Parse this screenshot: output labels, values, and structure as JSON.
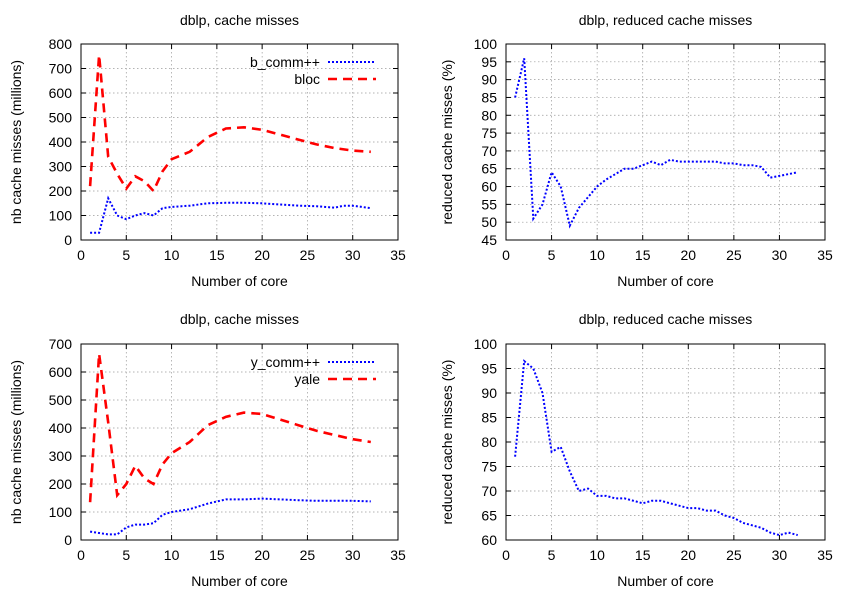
{
  "chart_data": [
    {
      "type": "line",
      "title": "dblp, cache misses",
      "xlabel": "Number of core",
      "ylabel": "nb cache misses (millions)",
      "xlim": [
        0,
        35
      ],
      "ylim": [
        0,
        800
      ],
      "xticks": [
        0,
        5,
        10,
        15,
        20,
        25,
        30,
        35
      ],
      "yticks": [
        0,
        100,
        200,
        300,
        400,
        500,
        600,
        700,
        800
      ],
      "grid": true,
      "legend": "top-right",
      "series": [
        {
          "name": "b_comm++",
          "color": "#0000ff",
          "style": "dotted",
          "x": [
            1,
            2,
            3,
            4,
            5,
            6,
            7,
            8,
            9,
            10,
            12,
            14,
            16,
            18,
            20,
            22,
            24,
            26,
            28,
            29,
            30,
            31,
            32
          ],
          "y": [
            30,
            30,
            170,
            100,
            85,
            100,
            110,
            100,
            130,
            135,
            140,
            150,
            152,
            152,
            150,
            145,
            140,
            138,
            132,
            140,
            140,
            135,
            130
          ]
        },
        {
          "name": "bloc",
          "color": "#ff0000",
          "style": "dashed",
          "x": [
            1,
            2,
            3,
            4,
            5,
            6,
            7,
            8,
            9,
            10,
            12,
            14,
            16,
            18,
            20,
            22,
            24,
            26,
            28,
            30,
            32
          ],
          "y": [
            220,
            755,
            340,
            270,
            210,
            260,
            240,
            200,
            280,
            330,
            360,
            420,
            455,
            460,
            450,
            430,
            410,
            390,
            375,
            365,
            360
          ]
        }
      ]
    },
    {
      "type": "line",
      "title": "dblp, reduced cache misses",
      "xlabel": "Number of core",
      "ylabel": "reduced cache misses (%)",
      "xlim": [
        0,
        35
      ],
      "ylim": [
        45,
        100
      ],
      "xticks": [
        0,
        5,
        10,
        15,
        20,
        25,
        30,
        35
      ],
      "yticks": [
        45,
        50,
        55,
        60,
        65,
        70,
        75,
        80,
        85,
        90,
        95,
        100
      ],
      "grid": true,
      "series": [
        {
          "color": "#0000ff",
          "style": "dotted",
          "x": [
            1,
            2,
            3,
            4,
            5,
            6,
            7,
            8,
            9,
            10,
            11,
            12,
            13,
            14,
            15,
            16,
            17,
            18,
            19,
            20,
            21,
            22,
            23,
            24,
            25,
            26,
            27,
            28,
            29,
            30,
            31,
            32
          ],
          "y": [
            85,
            96,
            51,
            55,
            64,
            60,
            49,
            54,
            57,
            60,
            62,
            63.5,
            65,
            65,
            66,
            67,
            66,
            67.5,
            67,
            67,
            67,
            67,
            67,
            66.5,
            66.5,
            66,
            66,
            65.5,
            62.5,
            63,
            63.5,
            64
          ]
        }
      ]
    },
    {
      "type": "line",
      "title": "dblp, cache misses",
      "xlabel": "Number of core",
      "ylabel": "nb cache misses (millions)",
      "xlim": [
        0,
        35
      ],
      "ylim": [
        0,
        700
      ],
      "xticks": [
        0,
        5,
        10,
        15,
        20,
        25,
        30,
        35
      ],
      "yticks": [
        0,
        100,
        200,
        300,
        400,
        500,
        600,
        700
      ],
      "grid": true,
      "legend": "top-right",
      "series": [
        {
          "name": "y_comm++",
          "color": "#0000ff",
          "style": "dotted",
          "x": [
            1,
            2,
            3,
            4,
            5,
            6,
            7,
            8,
            9,
            10,
            12,
            14,
            16,
            18,
            20,
            22,
            24,
            26,
            28,
            30,
            32
          ],
          "y": [
            30,
            25,
            20,
            20,
            45,
            55,
            55,
            60,
            90,
            100,
            110,
            130,
            145,
            145,
            148,
            145,
            142,
            140,
            140,
            140,
            138
          ]
        },
        {
          "name": "yale",
          "color": "#ff0000",
          "style": "dashed",
          "x": [
            1,
            2,
            3,
            4,
            5,
            6,
            7,
            8,
            9,
            10,
            12,
            14,
            16,
            18,
            20,
            22,
            24,
            26,
            28,
            30,
            32
          ],
          "y": [
            135,
            665,
            420,
            160,
            200,
            265,
            220,
            200,
            270,
            310,
            350,
            410,
            440,
            455,
            450,
            430,
            410,
            390,
            375,
            360,
            350
          ]
        }
      ]
    },
    {
      "type": "line",
      "title": "dblp, reduced cache misses",
      "xlabel": "Number of core",
      "ylabel": "reduced cache misses (%)",
      "xlim": [
        0,
        35
      ],
      "ylim": [
        60,
        100
      ],
      "xticks": [
        0,
        5,
        10,
        15,
        20,
        25,
        30,
        35
      ],
      "yticks": [
        60,
        65,
        70,
        75,
        80,
        85,
        90,
        95,
        100
      ],
      "grid": true,
      "series": [
        {
          "color": "#0000ff",
          "style": "dotted",
          "x": [
            1,
            2,
            3,
            4,
            5,
            6,
            7,
            8,
            9,
            10,
            11,
            12,
            13,
            14,
            15,
            16,
            17,
            18,
            19,
            20,
            21,
            22,
            23,
            24,
            25,
            26,
            27,
            28,
            29,
            30,
            31,
            32
          ],
          "y": [
            77,
            96.5,
            95,
            90,
            78,
            79,
            74,
            70,
            70.5,
            69,
            69,
            68.5,
            68.5,
            68,
            67.5,
            68,
            68,
            67.5,
            67,
            66.5,
            66.5,
            66,
            66,
            65,
            64.5,
            63.5,
            63,
            62.5,
            61.5,
            61,
            61.5,
            61
          ]
        }
      ]
    }
  ]
}
